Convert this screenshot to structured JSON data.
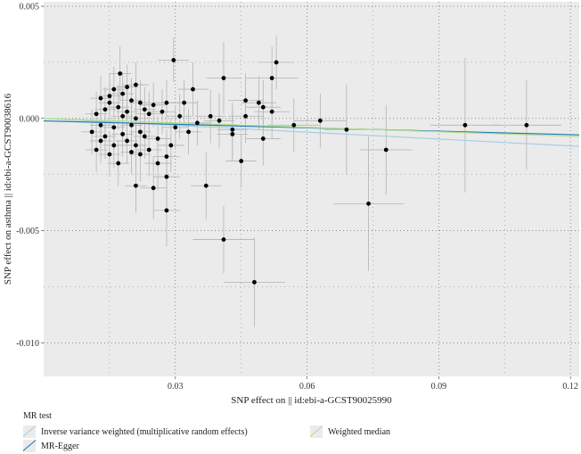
{
  "chart_data": {
    "type": "scatter",
    "xlabel": "SNP effect on || id:ebi-a-GCST90025990",
    "ylabel": "SNP effect on asthma || id:ebi-a-GCST90038616",
    "xlim": [
      0.0,
      0.122
    ],
    "ylim": [
      -0.0115,
      0.0052
    ],
    "x_ticks": [
      0.03,
      0.06,
      0.09,
      0.12
    ],
    "x_tick_labels": [
      "0.03",
      "0.06",
      "0.09",
      "0.12"
    ],
    "y_ticks": [
      0.005,
      0.0,
      -0.005,
      -0.01
    ],
    "y_tick_labels": [
      "0.005",
      "0.000",
      "-0.005",
      "-0.010"
    ],
    "grid": true,
    "legend_position": "bottom",
    "legend_title": "MR test",
    "lines": [
      {
        "name": "Inverse variance weighted (multiplicative random effects)",
        "intercept": 0.0,
        "slope": -0.0102,
        "color": "#a6cee3"
      },
      {
        "name": "MR-Egger",
        "intercept": -0.00011,
        "slope": -0.0051,
        "color": "#1f78b4"
      },
      {
        "name": "Weighted median",
        "intercept": 0.0,
        "slope": -0.0066,
        "color": "#b2df8a"
      }
    ],
    "points": [
      [
        0.0174,
        0.002,
        0.0025,
        0.0012
      ],
      [
        0.0296,
        0.0026,
        0.0035,
        0.001
      ],
      [
        0.053,
        0.0025,
        0.004,
        0.0012
      ],
      [
        0.052,
        0.0018,
        0.006,
        0.0014
      ],
      [
        0.041,
        0.0018,
        0.004,
        0.0016
      ],
      [
        0.021,
        0.0015,
        0.003,
        0.001
      ],
      [
        0.019,
        0.0014,
        0.0025,
        0.001
      ],
      [
        0.016,
        0.0013,
        0.0025,
        0.001
      ],
      [
        0.018,
        0.0011,
        0.0025,
        0.001
      ],
      [
        0.015,
        0.001,
        0.0025,
        0.001
      ],
      [
        0.02,
        0.0008,
        0.0025,
        0.001
      ],
      [
        0.013,
        0.0009,
        0.0025,
        0.001
      ],
      [
        0.022,
        0.0007,
        0.0025,
        0.001
      ],
      [
        0.025,
        0.0006,
        0.003,
        0.001
      ],
      [
        0.028,
        0.0007,
        0.003,
        0.001
      ],
      [
        0.032,
        0.0007,
        0.003,
        0.001
      ],
      [
        0.034,
        0.0013,
        0.0035,
        0.0012
      ],
      [
        0.046,
        0.0008,
        0.004,
        0.0012
      ],
      [
        0.049,
        0.0007,
        0.004,
        0.0012
      ],
      [
        0.05,
        0.0005,
        0.004,
        0.0012
      ],
      [
        0.046,
        0.0001,
        0.004,
        0.0012
      ],
      [
        0.052,
        0.0003,
        0.004,
        0.0012
      ],
      [
        0.038,
        0.0001,
        0.0035,
        0.0012
      ],
      [
        0.04,
        -0.0001,
        0.0035,
        0.0012
      ],
      [
        0.043,
        -0.0005,
        0.0035,
        0.0012
      ],
      [
        0.043,
        -0.0007,
        0.0035,
        0.0012
      ],
      [
        0.045,
        -0.0019,
        0.0035,
        0.0012
      ],
      [
        0.05,
        -0.0009,
        0.004,
        0.0012
      ],
      [
        0.057,
        -0.0003,
        0.006,
        0.0012
      ],
      [
        0.063,
        -0.0001,
        0.006,
        0.0012
      ],
      [
        0.069,
        -0.0005,
        0.005,
        0.002
      ],
      [
        0.078,
        -0.0014,
        0.006,
        0.002
      ],
      [
        0.074,
        -0.0038,
        0.008,
        0.003
      ],
      [
        0.096,
        -0.0003,
        0.008,
        0.003
      ],
      [
        0.11,
        -0.0003,
        0.008,
        0.002
      ],
      [
        0.037,
        -0.003,
        0.0035,
        0.0015
      ],
      [
        0.028,
        -0.0041,
        0.003,
        0.0016
      ],
      [
        0.028,
        -0.0026,
        0.003,
        0.0014
      ],
      [
        0.025,
        -0.0031,
        0.003,
        0.0014
      ],
      [
        0.021,
        -0.003,
        0.0025,
        0.0012
      ],
      [
        0.041,
        -0.0054,
        0.007,
        0.0015
      ],
      [
        0.048,
        -0.0073,
        0.007,
        0.002
      ],
      [
        0.028,
        -0.0017,
        0.003,
        0.0012
      ],
      [
        0.024,
        -0.0014,
        0.003,
        0.0012
      ],
      [
        0.022,
        -0.0016,
        0.0025,
        0.0012
      ],
      [
        0.017,
        -0.002,
        0.0025,
        0.001
      ],
      [
        0.015,
        -0.0016,
        0.0025,
        0.001
      ],
      [
        0.013,
        -0.001,
        0.0025,
        0.001
      ],
      [
        0.012,
        -0.0014,
        0.0025,
        0.001
      ],
      [
        0.011,
        -0.0006,
        0.0025,
        0.001
      ],
      [
        0.012,
        0.0002,
        0.0025,
        0.001
      ],
      [
        0.014,
        0.0004,
        0.0025,
        0.001
      ],
      [
        0.016,
        -0.0004,
        0.0025,
        0.001
      ],
      [
        0.018,
        0.0001,
        0.0025,
        0.001
      ],
      [
        0.02,
        -0.0003,
        0.0025,
        0.001
      ],
      [
        0.022,
        -0.0006,
        0.0025,
        0.001
      ],
      [
        0.024,
        0.0002,
        0.003,
        0.001
      ],
      [
        0.026,
        -0.0009,
        0.003,
        0.001
      ],
      [
        0.027,
        0.0003,
        0.003,
        0.001
      ],
      [
        0.03,
        -0.0004,
        0.003,
        0.001
      ],
      [
        0.031,
        0.0001,
        0.003,
        0.001
      ],
      [
        0.033,
        -0.0006,
        0.003,
        0.001
      ],
      [
        0.035,
        -0.0002,
        0.003,
        0.001
      ],
      [
        0.019,
        -0.001,
        0.0025,
        0.001
      ],
      [
        0.021,
        -0.0012,
        0.0025,
        0.001
      ],
      [
        0.023,
        -0.0008,
        0.0025,
        0.001
      ],
      [
        0.015,
        0.0007,
        0.0025,
        0.001
      ],
      [
        0.017,
        0.0005,
        0.0025,
        0.001
      ],
      [
        0.019,
        0.0003,
        0.0025,
        0.001
      ],
      [
        0.021,
        0.0,
        0.0025,
        0.001
      ],
      [
        0.023,
        0.0004,
        0.0025,
        0.001
      ],
      [
        0.013,
        -0.0003,
        0.0025,
        0.001
      ],
      [
        0.014,
        -0.0008,
        0.0025,
        0.001
      ],
      [
        0.016,
        -0.0012,
        0.0025,
        0.001
      ],
      [
        0.018,
        -0.0007,
        0.0025,
        0.001
      ],
      [
        0.02,
        -0.0015,
        0.0025,
        0.001
      ],
      [
        0.026,
        -0.002,
        0.003,
        0.0012
      ],
      [
        0.029,
        -0.0012,
        0.003,
        0.0012
      ]
    ]
  }
}
